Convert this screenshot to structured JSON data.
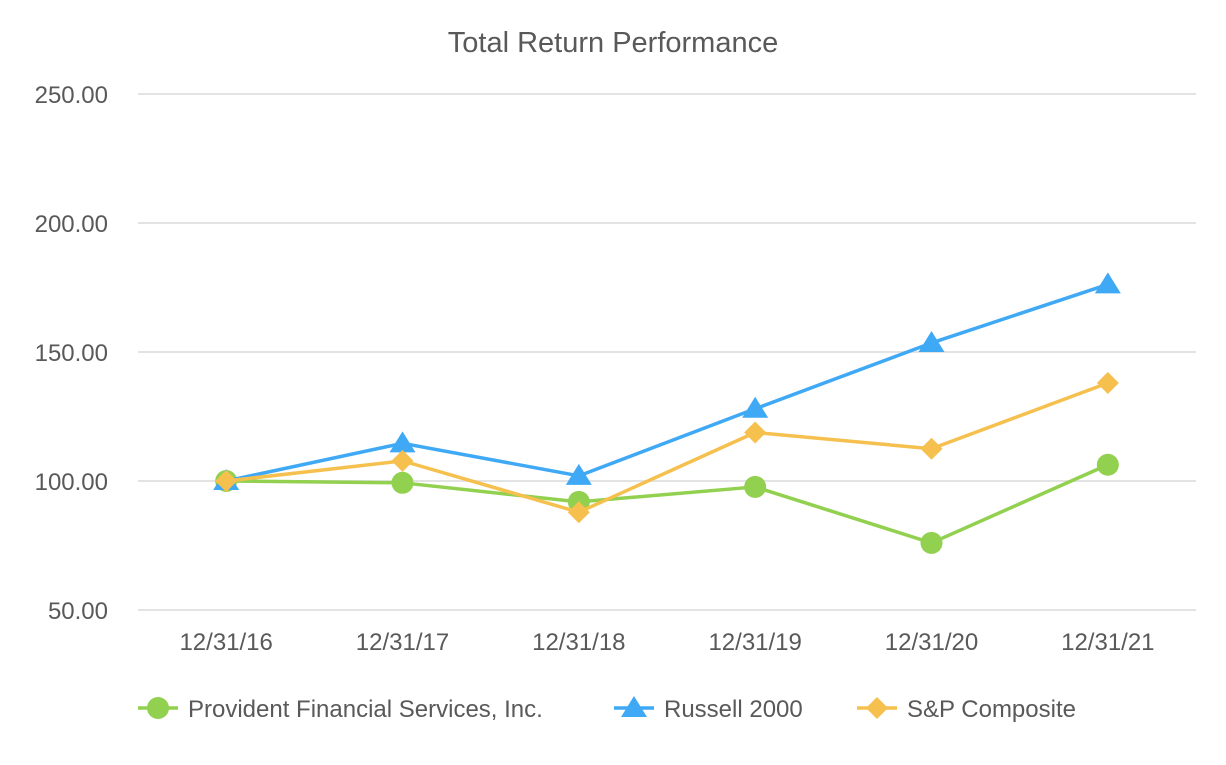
{
  "chart_data": {
    "type": "line",
    "title": "Total Return Performance",
    "xlabel": "",
    "ylabel": "",
    "categories": [
      "12/31/16",
      "12/31/17",
      "12/31/18",
      "12/31/19",
      "12/31/20",
      "12/31/21"
    ],
    "ylim": [
      50,
      250
    ],
    "yticks": [
      "50.00",
      "100.00",
      "150.00",
      "200.00",
      "250.00"
    ],
    "grid": true,
    "legend_position": "bottom",
    "series": [
      {
        "name": "Provident Financial Services, Inc.",
        "values": [
          100.0,
          99.3,
          91.9,
          97.7,
          76.0,
          106.3
        ],
        "color": "#92d050",
        "marker": "circle"
      },
      {
        "name": "Russell 2000",
        "values": [
          100.0,
          114.6,
          102.0,
          128.0,
          153.5,
          176.2
        ],
        "color": "#3fa9f5",
        "marker": "triangle"
      },
      {
        "name": "S&P Composite",
        "values": [
          100.0,
          107.8,
          87.9,
          118.8,
          112.5,
          138.0
        ],
        "color": "#f6c04f",
        "marker": "diamond"
      }
    ]
  }
}
